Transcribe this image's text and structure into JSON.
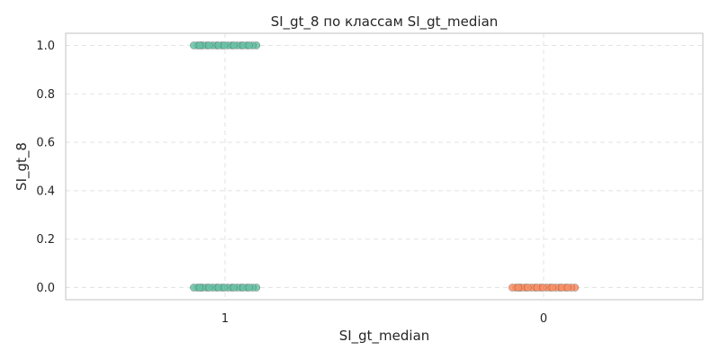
{
  "chart_data": {
    "type": "scatter",
    "title": "SI_gt_8 по классам SI_gt_median",
    "xlabel": "SI_gt_median",
    "ylabel": "SI_gt_8",
    "categories": [
      "1",
      "0"
    ],
    "ylim": [
      -0.05,
      1.05
    ],
    "yticks": [
      "0.0",
      "0.2",
      "0.4",
      "0.6",
      "0.8",
      "1.0"
    ],
    "grid": true,
    "series": [
      {
        "category": "1",
        "color": "#66c2a5",
        "values": [
          0,
          1
        ]
      },
      {
        "category": "0",
        "color": "#fc8d62",
        "values": [
          0
        ]
      }
    ]
  }
}
